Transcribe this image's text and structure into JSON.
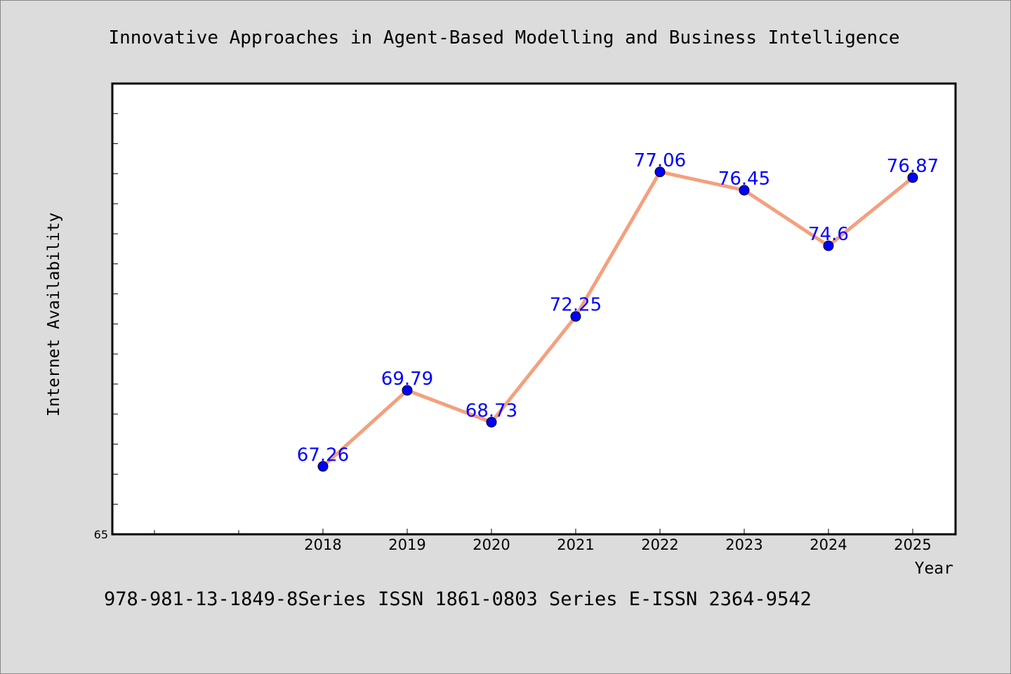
{
  "title": "Innovative Approaches in Agent-Based Modelling and Business Intelligence",
  "footer": "978-981-13-1849-8Series ISSN 1861-0803 Series E-ISSN 2364-9542",
  "chart_data": {
    "type": "line",
    "title": "Innovative Approaches in Agent-Based Modelling and Business Intelligence",
    "xlabel": "Year",
    "ylabel": "Internet Availability",
    "categories": [
      "2018",
      "2019",
      "2020",
      "2021",
      "2022",
      "2023",
      "2024",
      "2025"
    ],
    "series": [
      {
        "values": [
          67.26,
          69.79,
          68.73,
          72.25,
          77.06,
          76.45,
          74.6,
          76.87
        ],
        "labels": [
          "67.26",
          "69.79",
          "68.73",
          "72.25",
          "77.06",
          "76.45",
          "74.6",
          "76.87"
        ]
      }
    ],
    "y_tick_labels": [
      "65"
    ],
    "ylim": [
      65,
      80
    ],
    "grid": false,
    "legend": "none",
    "colors": {
      "line": "#f4a07e",
      "marker": "#0000ff",
      "label": "#0000ff",
      "background": "#dcdcdc",
      "plot_background": "#ffffff"
    }
  }
}
